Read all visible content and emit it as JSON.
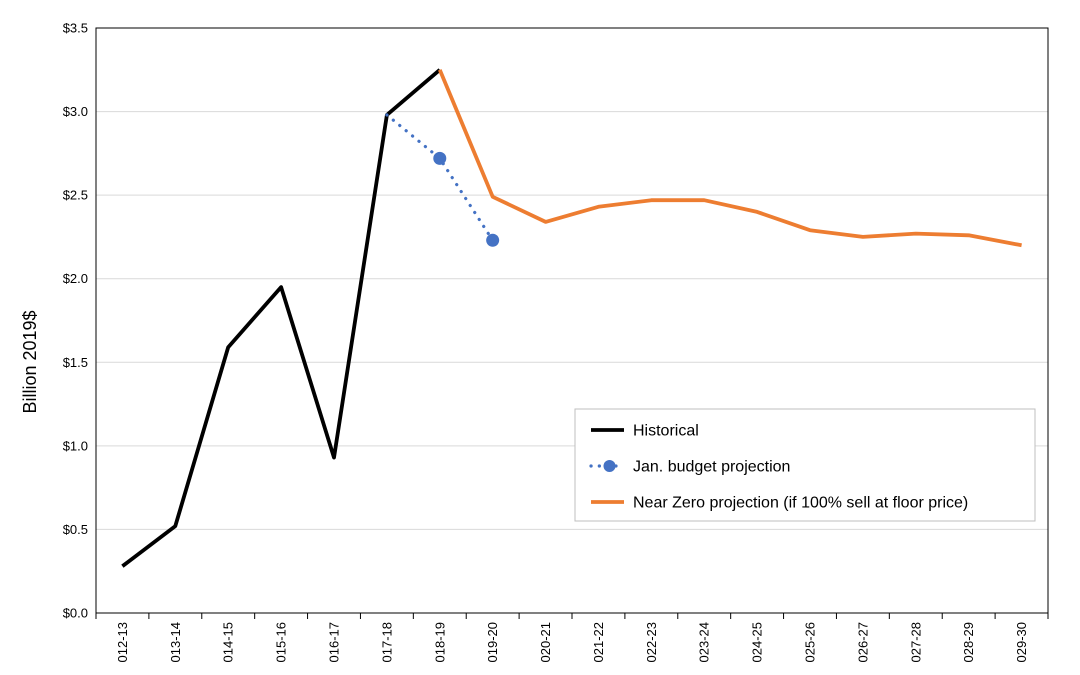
{
  "chart_data": {
    "type": "line",
    "ylabel": "Billion 2019$",
    "ylim": [
      0,
      3.5
    ],
    "y_ticks": [
      0.0,
      0.5,
      1.0,
      1.5,
      2.0,
      2.5,
      3.0,
      3.5
    ],
    "y_tick_labels": [
      "$0.0",
      "$0.5",
      "$1.0",
      "$1.5",
      "$2.0",
      "$2.5",
      "$3.0",
      "$3.5"
    ],
    "categories": [
      "012-13",
      "013-14",
      "014-15",
      "015-16",
      "016-17",
      "017-18",
      "018-19",
      "019-20",
      "020-21",
      "021-22",
      "022-23",
      "023-24",
      "024-25",
      "025-26",
      "026-27",
      "027-28",
      "028-29",
      "029-30"
    ],
    "grid": "horizontal",
    "legend_position": "right-middle",
    "series": [
      {
        "name": "Historical",
        "color": "#000000",
        "style": "solid",
        "values": [
          0.28,
          0.52,
          1.59,
          1.95,
          0.93,
          2.98,
          3.25,
          null,
          null,
          null,
          null,
          null,
          null,
          null,
          null,
          null,
          null,
          null
        ]
      },
      {
        "name": "Jan. budget projection",
        "color": "#4472C4",
        "style": "dotted-markers",
        "values": [
          null,
          null,
          null,
          null,
          null,
          2.98,
          2.72,
          2.23,
          null,
          null,
          null,
          null,
          null,
          null,
          null,
          null,
          null,
          null
        ]
      },
      {
        "name": "Near Zero projection (if 100% sell at floor price)",
        "color": "#ED7D31",
        "style": "solid",
        "values": [
          null,
          null,
          null,
          null,
          null,
          null,
          3.25,
          2.49,
          2.34,
          2.43,
          2.47,
          2.47,
          2.4,
          2.29,
          2.25,
          2.27,
          2.26,
          2.2
        ]
      }
    ]
  }
}
